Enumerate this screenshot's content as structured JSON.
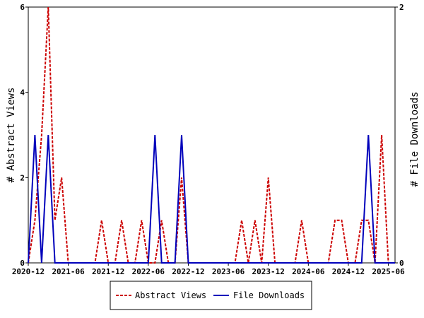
{
  "colors": {
    "abstract_views": "#cc0000",
    "file_downloads": "#0000bb",
    "axis": "#000000"
  },
  "chart_data": {
    "type": "line",
    "title": "",
    "xlabel": "",
    "x_ticks": [
      "2020-12",
      "2021-06",
      "2021-12",
      "2022-06",
      "2022-12",
      "2023-06",
      "2023-12",
      "2024-06",
      "2024-12",
      "2025-06"
    ],
    "xlim": [
      "2020-12",
      "2025-07"
    ],
    "y_left": {
      "label": "# Abstract Views",
      "ticks": [
        "0",
        "2",
        "4",
        "6"
      ],
      "ylim": [
        0,
        6
      ]
    },
    "y_right": {
      "label": "# File Downloads",
      "ticks": [
        "0",
        "2"
      ],
      "ylim": [
        0,
        2
      ]
    },
    "grid": false,
    "legend_position": "bottom",
    "x": [
      "2020-12",
      "2021-01",
      "2021-02",
      "2021-03",
      "2021-04",
      "2021-05",
      "2021-06",
      "2021-07",
      "2021-08",
      "2021-09",
      "2021-10",
      "2021-11",
      "2021-12",
      "2022-01",
      "2022-02",
      "2022-03",
      "2022-04",
      "2022-05",
      "2022-06",
      "2022-07",
      "2022-08",
      "2022-09",
      "2022-10",
      "2022-11",
      "2022-12",
      "2023-01",
      "2023-02",
      "2023-03",
      "2023-04",
      "2023-05",
      "2023-06",
      "2023-07",
      "2023-08",
      "2023-09",
      "2023-10",
      "2023-11",
      "2023-12",
      "2024-01",
      "2024-02",
      "2024-03",
      "2024-04",
      "2024-05",
      "2024-06",
      "2024-07",
      "2024-08",
      "2024-09",
      "2024-10",
      "2024-11",
      "2024-12",
      "2025-01",
      "2025-02",
      "2025-03",
      "2025-04",
      "2025-05",
      "2025-06",
      "2025-07"
    ],
    "series": [
      {
        "name": "Abstract Views",
        "axis": "left",
        "style": "dashed",
        "values": [
          0,
          1,
          3,
          6,
          1,
          2,
          0,
          0,
          0,
          0,
          0,
          1,
          0,
          0,
          1,
          0,
          0,
          1,
          0,
          0,
          1,
          0,
          0,
          2,
          0,
          0,
          0,
          0,
          0,
          0,
          0,
          0,
          1,
          0,
          1,
          0,
          2,
          0,
          0,
          0,
          0,
          1,
          0,
          0,
          0,
          0,
          1,
          1,
          0,
          0,
          1,
          1,
          0,
          3,
          0,
          0
        ]
      },
      {
        "name": "File Downloads",
        "axis": "right",
        "style": "solid",
        "values": [
          0,
          1,
          0,
          1,
          0,
          0,
          0,
          0,
          0,
          0,
          0,
          0,
          0,
          0,
          0,
          0,
          0,
          0,
          0,
          1,
          0,
          0,
          0,
          1,
          0,
          0,
          0,
          0,
          0,
          0,
          0,
          0,
          0,
          0,
          0,
          0,
          0,
          0,
          0,
          0,
          0,
          0,
          0,
          0,
          0,
          0,
          0,
          0,
          0,
          0,
          0,
          1,
          0,
          0,
          0,
          0
        ]
      }
    ]
  }
}
